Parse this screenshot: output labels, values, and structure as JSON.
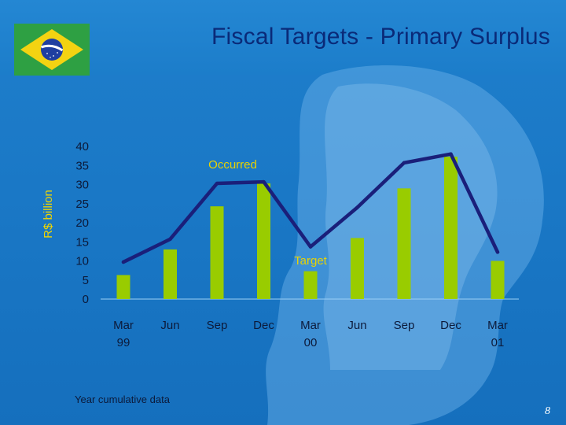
{
  "slide": {
    "title": "Fiscal Targets - Primary Surplus",
    "note": "Year cumulative data",
    "page_number": "8",
    "flag_icon": "brazil-flag-icon"
  },
  "colors": {
    "background": "#1a78c6",
    "bars": "#99cc00",
    "line": "#1a1f7a",
    "title": "#0a2a78",
    "label_yellow": "#f1d600"
  },
  "chart_data": {
    "type": "bar",
    "ylabel": "R$ billion",
    "ylim": [
      0,
      40
    ],
    "yticks": [
      "40",
      "35",
      "30",
      "25",
      "20",
      "15",
      "10",
      "5",
      "0"
    ],
    "categories": [
      [
        "Mar",
        "99"
      ],
      [
        "Jun",
        ""
      ],
      [
        "Sep",
        ""
      ],
      [
        "Dec",
        ""
      ],
      [
        "Mar",
        "00"
      ],
      [
        "Jun",
        ""
      ],
      [
        "Sep",
        ""
      ],
      [
        "Dec",
        ""
      ],
      [
        "Mar",
        "01"
      ]
    ],
    "grid": false,
    "series": [
      {
        "name": "Target",
        "type": "bar",
        "x_index": [
          0,
          1,
          2,
          3,
          4,
          5,
          6,
          7,
          8
        ],
        "values": [
          6.3,
          13,
          24.3,
          30.3,
          7.3,
          16,
          29,
          37.3,
          10
        ]
      },
      {
        "name": "Occurred",
        "type": "line",
        "x_index": [
          0,
          1,
          2,
          3,
          4,
          5,
          6,
          7,
          8
        ],
        "values": [
          9.7,
          15.7,
          30.3,
          30.7,
          13.7,
          24,
          35.7,
          38,
          12.3
        ]
      }
    ]
  }
}
